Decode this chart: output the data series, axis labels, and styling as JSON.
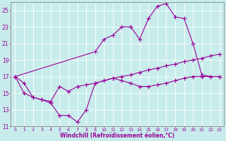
{
  "xlabel": "Windchill (Refroidissement éolien,°C)",
  "background_color": "#c8ecec",
  "line_color": "#990099",
  "grid_color": "#aaaaaa",
  "xmin": 0,
  "xmax": 23,
  "ymin": 11,
  "ymax": 26,
  "yticks": [
    11,
    13,
    15,
    17,
    19,
    21,
    23,
    25
  ],
  "xticks": [
    0,
    1,
    2,
    3,
    4,
    5,
    6,
    7,
    8,
    9,
    10,
    11,
    12,
    13,
    14,
    15,
    16,
    17,
    18,
    19,
    20,
    21,
    22,
    23
  ],
  "line1_x": [
    0,
    1,
    2,
    3,
    4,
    5,
    6,
    7,
    8,
    9,
    10,
    11,
    12,
    13,
    14,
    15,
    16,
    17,
    18,
    19,
    20,
    21,
    22,
    23
  ],
  "line1_y": [
    17.0,
    16.2,
    14.5,
    14.2,
    13.8,
    12.3,
    12.3,
    11.5,
    13.0,
    16.2,
    16.5,
    16.8,
    16.5,
    16.2,
    15.8,
    15.8,
    16.0,
    16.2,
    16.5,
    16.8,
    17.0,
    17.0,
    17.0,
    17.0
  ],
  "line2_x": [
    0,
    9,
    10,
    11,
    12,
    13,
    14,
    15,
    16,
    17,
    18,
    19,
    20,
    21,
    22,
    23
  ],
  "line2_y": [
    17.0,
    20.0,
    21.5,
    22.0,
    23.0,
    23.0,
    21.5,
    24.0,
    25.5,
    25.8,
    24.2,
    24.0,
    21.0,
    17.2,
    17.0,
    17.0
  ],
  "line3_x": [
    0,
    1,
    2,
    3,
    4,
    5,
    6,
    7,
    8,
    9,
    10,
    11,
    12,
    13,
    14,
    15,
    16,
    17,
    18,
    19,
    20,
    21,
    22,
    23
  ],
  "line3_y": [
    17.0,
    15.0,
    14.5,
    14.2,
    14.0,
    15.8,
    15.2,
    15.8,
    16.0,
    16.2,
    16.5,
    16.8,
    17.0,
    17.2,
    17.5,
    17.8,
    18.0,
    18.3,
    18.5,
    18.8,
    19.0,
    19.2,
    19.5,
    19.7
  ]
}
